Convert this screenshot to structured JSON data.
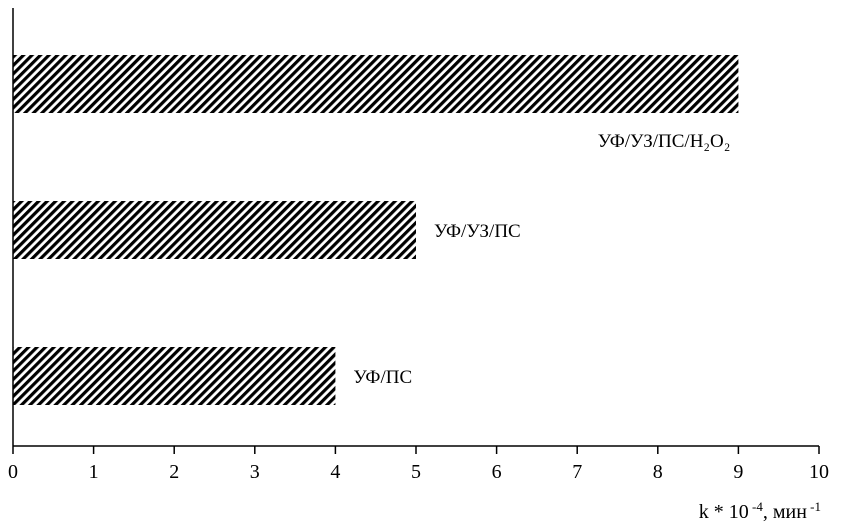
{
  "chart_data": {
    "type": "bar",
    "orientation": "horizontal",
    "categories": [
      "УФ/ПС",
      "УФ/УЗ/ПС",
      "УФ/УЗ/ПС/H₂O₂"
    ],
    "values": [
      4,
      5,
      9
    ],
    "xlim": [
      0,
      10
    ],
    "xticks": [
      "0",
      "1",
      "2",
      "3",
      "4",
      "5",
      "6",
      "7",
      "8",
      "9",
      "10"
    ],
    "xlabel": {
      "base": "k * 10",
      "exp": " -4",
      "unit": ", мин",
      "unit_exp": " -1"
    },
    "grid": false,
    "fill_pattern": "diagonal-hatch",
    "bar_color": "#000000"
  }
}
